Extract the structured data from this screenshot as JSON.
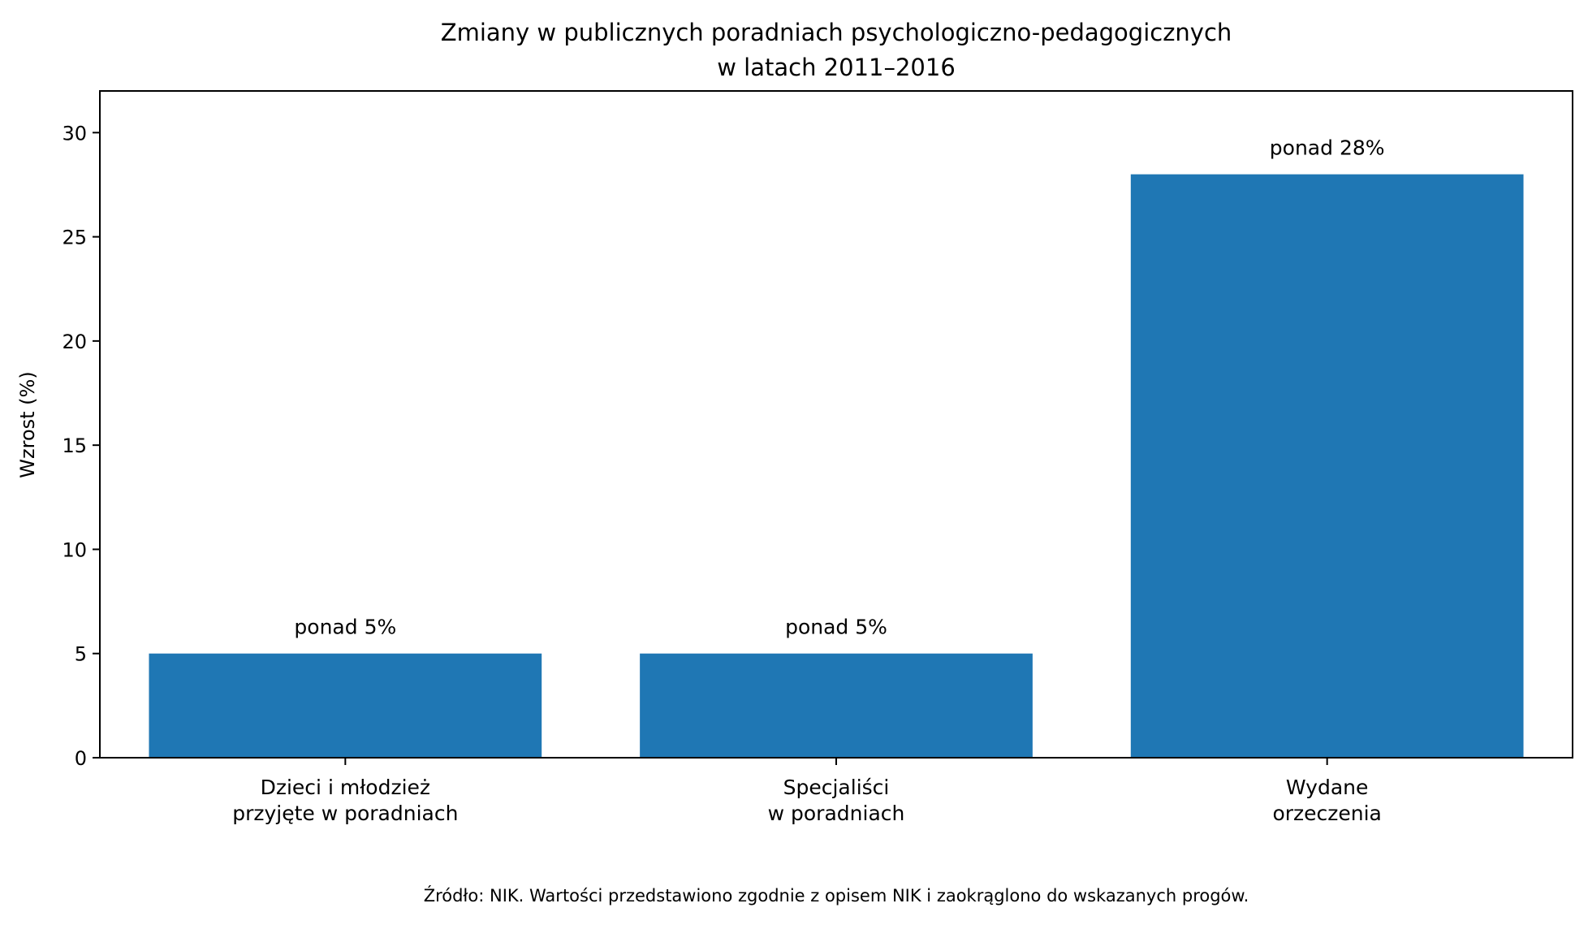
{
  "chart_data": {
    "type": "bar",
    "title": "Zmiany w publicznych poradniach psychologiczno-pedagogicznych",
    "subtitle": "w latach 2011–2016",
    "xlabel": "",
    "ylabel": "Wzrost (%)",
    "ylim": [
      0,
      32
    ],
    "yticks": [
      0,
      5,
      10,
      15,
      20,
      25,
      30
    ],
    "categories": [
      [
        "Dzieci i młodzież",
        "przyjęte w poradniach"
      ],
      [
        "Specjaliści",
        "w poradniach"
      ],
      [
        "Wydane",
        "orzeczenia"
      ]
    ],
    "values": [
      5,
      5,
      28
    ],
    "data_labels": [
      "ponad 5%",
      "ponad 5%",
      "ponad 28%"
    ],
    "bar_color": "#1f77b4",
    "grid": false,
    "legend": "none"
  },
  "footer": {
    "source_note": "Źródło: NIK. Wartości przedstawiono zgodnie z opisem NIK i zaokrąglono do wskazanych progów."
  }
}
